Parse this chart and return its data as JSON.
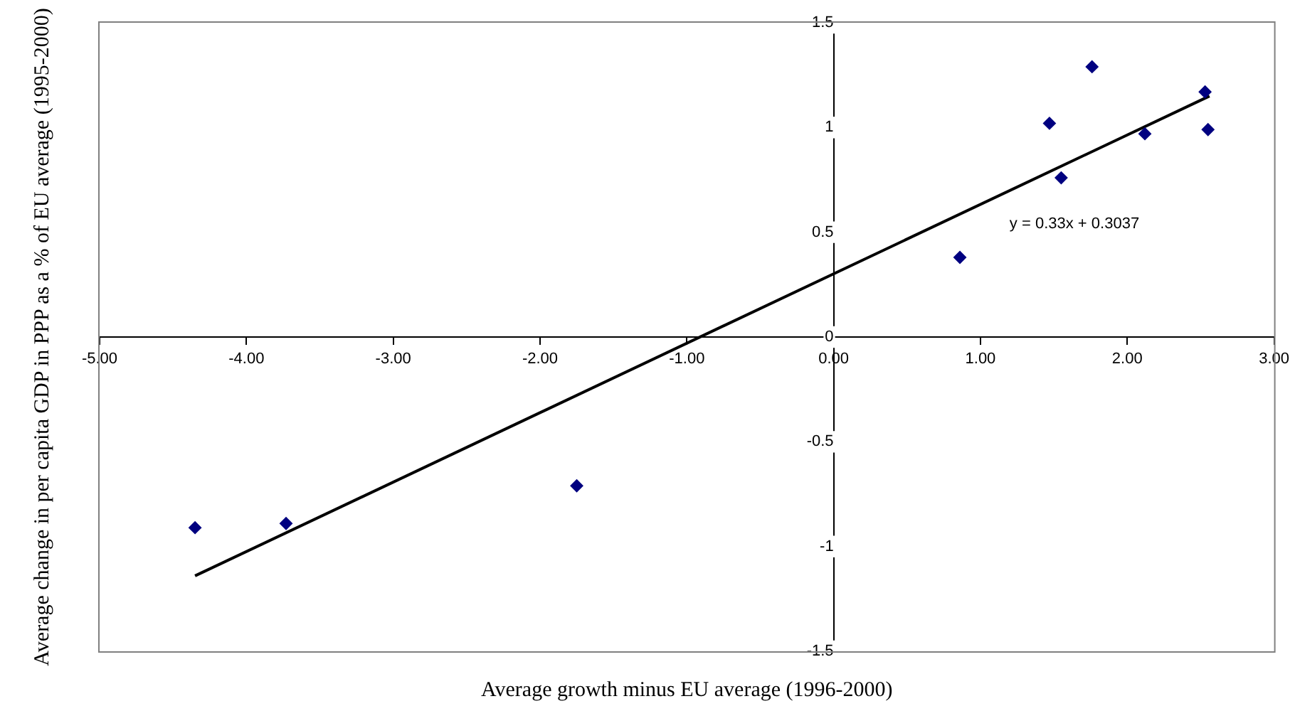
{
  "chart_data": {
    "type": "scatter",
    "xlabel": "Average growth minus EU average (1996-2000)",
    "ylabel": "Average change in per capita GDP in PPP as a % of EU average (1995-2000)",
    "xlim": [
      -5,
      3
    ],
    "ylim": [
      -1.5,
      1.5
    ],
    "xticks": [
      {
        "value": -5,
        "label": "-5.00"
      },
      {
        "value": -4,
        "label": "-4.00"
      },
      {
        "value": -3,
        "label": "-3.00"
      },
      {
        "value": -2,
        "label": "-2.00"
      },
      {
        "value": -1,
        "label": "-1.00"
      },
      {
        "value": 0,
        "label": "0.00"
      },
      {
        "value": 1,
        "label": "1.00"
      },
      {
        "value": 2,
        "label": "2.00"
      },
      {
        "value": 3,
        "label": "3.00"
      }
    ],
    "yticks": [
      -1.5,
      -1,
      -0.5,
      0,
      0.5,
      1,
      1.5
    ],
    "grid": false,
    "legend": false,
    "series": [
      {
        "type": "scatter",
        "color": "#000080",
        "marker": "diamond",
        "x": [
          -4.35,
          -3.73,
          -1.75,
          0.86,
          1.47,
          1.55,
          1.76,
          2.12,
          2.53,
          2.55
        ],
        "values": [
          -0.91,
          -0.89,
          -0.71,
          0.38,
          1.02,
          0.76,
          1.29,
          0.97,
          1.17,
          0.99
        ]
      },
      {
        "type": "line",
        "color": "#000000",
        "marker": "none",
        "line_style": "solid",
        "x": [
          -4.35,
          2.56
        ],
        "values": [
          -1.14,
          1.15
        ]
      }
    ],
    "annotations": [
      "y = 0.33x + 0.3037"
    ]
  }
}
